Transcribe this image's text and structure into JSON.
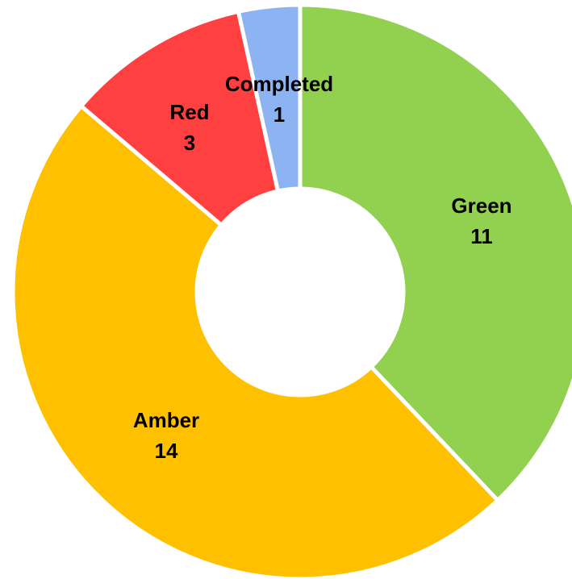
{
  "chart_data": {
    "type": "pie",
    "subtype": "donut",
    "title": "",
    "legend": "none",
    "slices": [
      {
        "label": "Green",
        "value": 11,
        "color": "#92D050"
      },
      {
        "label": "Amber",
        "value": 14,
        "color": "#FFC000"
      },
      {
        "label": "Red",
        "value": 3,
        "color": "#FF4040"
      },
      {
        "label": "Completed",
        "value": 1,
        "color": "#8DB4F2"
      }
    ]
  }
}
